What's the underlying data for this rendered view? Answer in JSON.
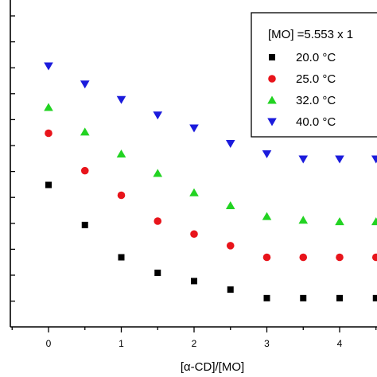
{
  "chart_data": {
    "type": "scatter",
    "title": "",
    "xlabel": "[α-CD]/[MO]",
    "ylabel": "",
    "xlim": [
      -0.5,
      4.6
    ],
    "xticks": [
      0,
      1,
      2,
      3,
      4
    ],
    "grid": false,
    "legend": {
      "placement": "top-right",
      "title": "[MO] =5.553 x 1",
      "unit": "°C"
    },
    "series": [
      {
        "name": "20.0",
        "marker": "square",
        "color": "#000000",
        "x": [
          0,
          0.5,
          1,
          1.5,
          2,
          2.5,
          3,
          3.5,
          4,
          4.5
        ],
        "y": [
          5.0,
          3.45,
          2.2,
          1.6,
          1.28,
          0.95,
          0.62,
          0.62,
          0.62,
          0.62
        ]
      },
      {
        "name": "25.0",
        "marker": "circle",
        "color": "#e8141b",
        "x": [
          0,
          0.5,
          1,
          1.5,
          2,
          2.5,
          3,
          3.5,
          4,
          4.5
        ],
        "y": [
          7.0,
          5.55,
          4.6,
          3.6,
          3.1,
          2.65,
          2.2,
          2.2,
          2.2,
          2.2
        ]
      },
      {
        "name": "32.0",
        "marker": "triangle-up",
        "color": "#22d322",
        "x": [
          0,
          0.5,
          1,
          1.5,
          2,
          2.5,
          3,
          3.5,
          4,
          4.5
        ],
        "y": [
          8.0,
          7.05,
          6.2,
          5.45,
          4.7,
          4.2,
          3.78,
          3.64,
          3.58,
          3.58
        ]
      },
      {
        "name": "40.0",
        "marker": "triangle-down",
        "color": "#1b1bdc",
        "x": [
          0,
          0.5,
          1,
          1.5,
          2,
          2.5,
          3,
          3.5,
          4,
          4.5
        ],
        "y": [
          9.6,
          8.9,
          8.3,
          7.7,
          7.2,
          6.6,
          6.2,
          6.0,
          6.0,
          6.0
        ]
      }
    ]
  }
}
